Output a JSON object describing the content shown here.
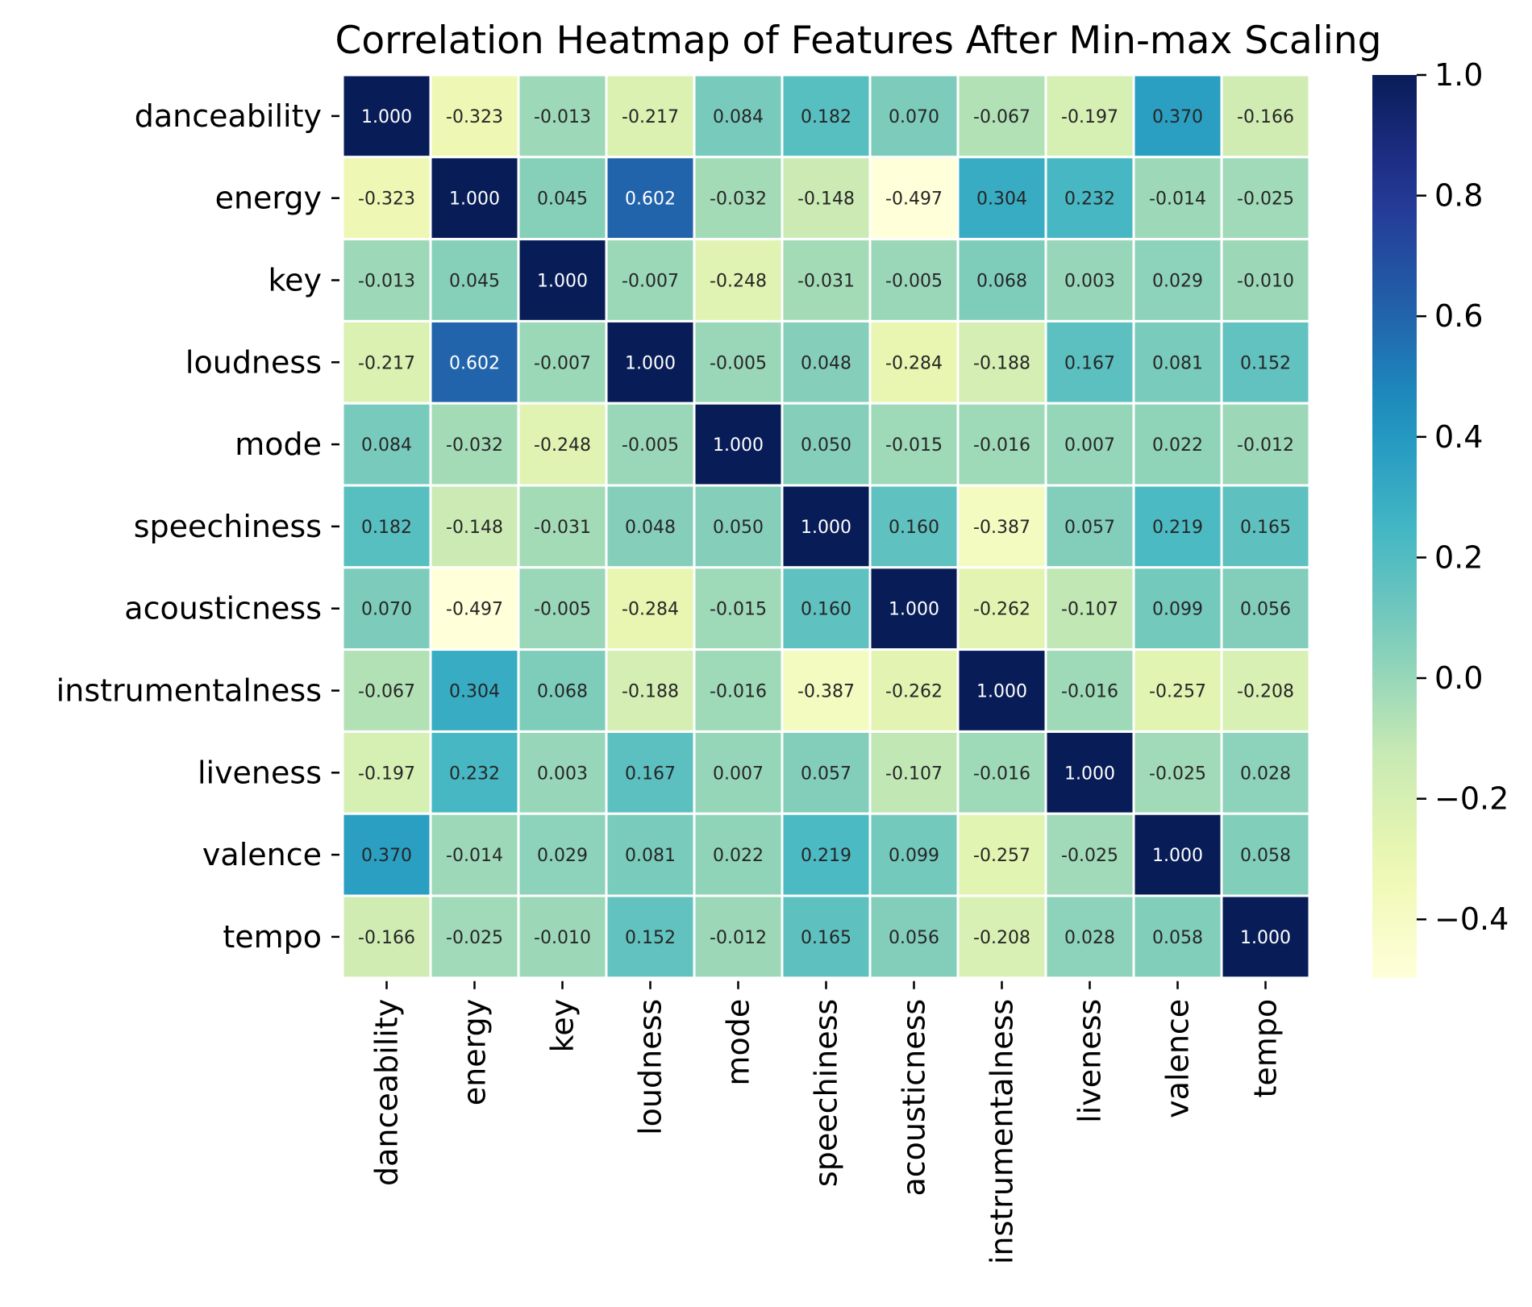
{
  "chart_data": {
    "type": "heatmap",
    "title": "Correlation Heatmap of Features After Min-max Scaling",
    "xlabel": "",
    "ylabel": "",
    "colormap": "YlGnBu",
    "value_range": [
      -0.497,
      1.0
    ],
    "cell_border_color": "#ffffff",
    "annotation_format": "0.000",
    "rows": [
      "danceability",
      "energy",
      "key",
      "loudness",
      "mode",
      "speechiness",
      "acousticness",
      "instrumentalness",
      "liveness",
      "valence",
      "tempo"
    ],
    "columns": [
      "danceability",
      "energy",
      "key",
      "loudness",
      "mode",
      "speechiness",
      "acousticness",
      "instrumentalness",
      "liveness",
      "valence",
      "tempo"
    ],
    "values": [
      [
        1.0,
        -0.323,
        -0.013,
        -0.217,
        0.084,
        0.182,
        0.07,
        -0.067,
        -0.197,
        0.37,
        -0.166
      ],
      [
        -0.323,
        1.0,
        0.045,
        0.602,
        -0.032,
        -0.148,
        -0.497,
        0.304,
        0.232,
        -0.014,
        -0.025
      ],
      [
        -0.013,
        0.045,
        1.0,
        -0.007,
        -0.248,
        -0.031,
        -0.005,
        0.068,
        0.003,
        0.029,
        -0.01
      ],
      [
        -0.217,
        0.602,
        -0.007,
        1.0,
        -0.005,
        0.048,
        -0.284,
        -0.188,
        0.167,
        0.081,
        0.152
      ],
      [
        0.084,
        -0.032,
        -0.248,
        -0.005,
        1.0,
        0.05,
        -0.015,
        -0.016,
        0.007,
        0.022,
        -0.012
      ],
      [
        0.182,
        -0.148,
        -0.031,
        0.048,
        0.05,
        1.0,
        0.16,
        -0.387,
        0.057,
        0.219,
        0.165
      ],
      [
        0.07,
        -0.497,
        -0.005,
        -0.284,
        -0.015,
        0.16,
        1.0,
        -0.262,
        -0.107,
        0.099,
        0.056
      ],
      [
        -0.067,
        0.304,
        0.068,
        -0.188,
        -0.016,
        -0.387,
        -0.262,
        1.0,
        -0.016,
        -0.257,
        -0.208
      ],
      [
        -0.197,
        0.232,
        0.003,
        0.167,
        0.007,
        0.057,
        -0.107,
        -0.016,
        1.0,
        -0.025,
        0.028
      ],
      [
        0.37,
        -0.014,
        0.029,
        0.081,
        0.022,
        0.219,
        0.099,
        -0.257,
        -0.025,
        1.0,
        0.058
      ],
      [
        -0.166,
        -0.025,
        -0.01,
        0.152,
        -0.012,
        0.165,
        0.056,
        -0.208,
        0.028,
        0.058,
        1.0
      ]
    ],
    "colorbar": {
      "ticks": [
        1.0,
        0.8,
        0.6,
        0.4,
        0.2,
        0.0,
        -0.2,
        -0.4
      ],
      "tick_labels": [
        "1.0",
        "0.8",
        "0.6",
        "0.4",
        "0.2",
        "0.0",
        "−0.2",
        "−0.4"
      ]
    }
  }
}
